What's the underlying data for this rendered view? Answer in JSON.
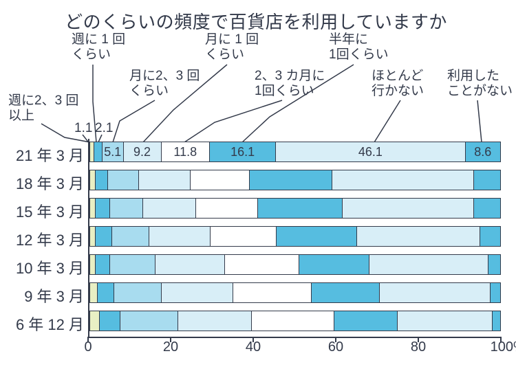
{
  "title": "どのくらいの頻度で百貨店を利用していますか",
  "chart": {
    "type": "stacked-bar-horizontal",
    "x_axis": {
      "min": 0,
      "max": 100,
      "tick_step": 20,
      "suffix": "%"
    },
    "categories": [
      {
        "key": "c1",
        "label": "週に2、3 回\n以上"
      },
      {
        "key": "c2",
        "label": "週に 1 回\nくらい"
      },
      {
        "key": "c3",
        "label": "月に2、3 回\nくらい"
      },
      {
        "key": "c4",
        "label": "月に 1 回\nくらい"
      },
      {
        "key": "c5",
        "label": "2、3 カ月に\n1回くらい"
      },
      {
        "key": "c6",
        "label": "半年に\n1回くらい"
      },
      {
        "key": "c7",
        "label": "ほとんど\n行かない"
      },
      {
        "key": "c8",
        "label": "利用した\nことがない"
      }
    ],
    "colors": {
      "c1": "#e8efc4",
      "c2": "#56bde0",
      "c3": "#a8dcef",
      "c4": "#d8eef7",
      "c5": "#ffffff",
      "c6": "#56bde0",
      "c7": "#d8eef7",
      "c8": "#56bde0"
    },
    "rows": [
      {
        "label": "21 年 3 月",
        "values": [
          1.1,
          2.1,
          5.1,
          9.2,
          11.8,
          16.1,
          46.1,
          8.6
        ],
        "show_values": true
      },
      {
        "label": "18 年 3 月",
        "values": [
          1.5,
          3.0,
          7.5,
          12.5,
          14.5,
          20.0,
          34.5,
          6.5
        ],
        "show_values": false
      },
      {
        "label": "15 年 3 月",
        "values": [
          1.5,
          3.5,
          8.0,
          13.0,
          15.0,
          20.5,
          32.0,
          6.5
        ],
        "show_values": false
      },
      {
        "label": "12 年 3 月",
        "values": [
          1.5,
          4.0,
          9.0,
          15.0,
          16.0,
          19.5,
          30.0,
          5.0
        ],
        "show_values": false
      },
      {
        "label": "10 年 3 月",
        "values": [
          1.5,
          3.5,
          11.0,
          17.0,
          18.0,
          17.0,
          29.0,
          3.0
        ],
        "show_values": false
      },
      {
        "label": "9 年 3 月",
        "values": [
          2.0,
          4.0,
          11.5,
          17.5,
          19.0,
          16.5,
          27.0,
          2.5
        ],
        "show_values": false
      },
      {
        "label": "6 年 12 月",
        "values": [
          2.5,
          5.0,
          14.0,
          18.0,
          20.0,
          15.5,
          23.0,
          2.0
        ],
        "show_values": false
      }
    ],
    "border_color": "#333a4a",
    "text_color": "#333a4a",
    "title_fontsize": 26,
    "label_fontsize": 22,
    "value_fontsize": 18,
    "background": "#ffffff"
  }
}
